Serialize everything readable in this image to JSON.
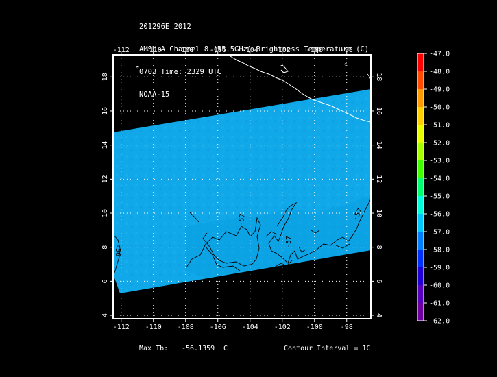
{
  "header": {
    "line1": "201296E 2012",
    "line2": "AMSU-A Channel 8 (55.5GHz) Brightness Temperature (C)",
    "line3": "0703 Time: 2329 UTC",
    "line4": "NOAA-15"
  },
  "map": {
    "lon_range": [
      -112.5,
      -96.5
    ],
    "lat_range": [
      3.8,
      19.3
    ],
    "lon_ticks": [
      "-112",
      "-110",
      "-108",
      "-106",
      "-104",
      "-102",
      "-100",
      "-98"
    ],
    "lat_ticks": [
      "4",
      "6",
      "8",
      "10",
      "12",
      "14",
      "16",
      "18"
    ],
    "swath_color": "#10a8e8",
    "frame_color": "#ffffff",
    "coast_color": "#ffffff",
    "contour_color": "#000000",
    "contour_labels": [
      "-57",
      "-57",
      "-57",
      "-56"
    ]
  },
  "colorbar": {
    "labels": [
      "-47.0",
      "-48.0",
      "-49.0",
      "-50.0",
      "-51.0",
      "-52.0",
      "-53.0",
      "-54.0",
      "-55.0",
      "-56.0",
      "-57.0",
      "-58.0",
      "-59.0",
      "-60.0",
      "-61.0",
      "-62.0"
    ],
    "colors": [
      "#ff0000",
      "#ff4a00",
      "#ff9a00",
      "#ffd000",
      "#e8ff00",
      "#a8ff00",
      "#40ff00",
      "#00ff70",
      "#00ffd8",
      "#00c8ff",
      "#0080ff",
      "#0030ff",
      "#2000d8",
      "#5800c0",
      "#7000a0",
      "#000000"
    ]
  },
  "footer": {
    "max_label": "Max Tb:",
    "max_value": "-56.1359",
    "max_unit": "C",
    "contour": "Contour Interval = 1C"
  }
}
